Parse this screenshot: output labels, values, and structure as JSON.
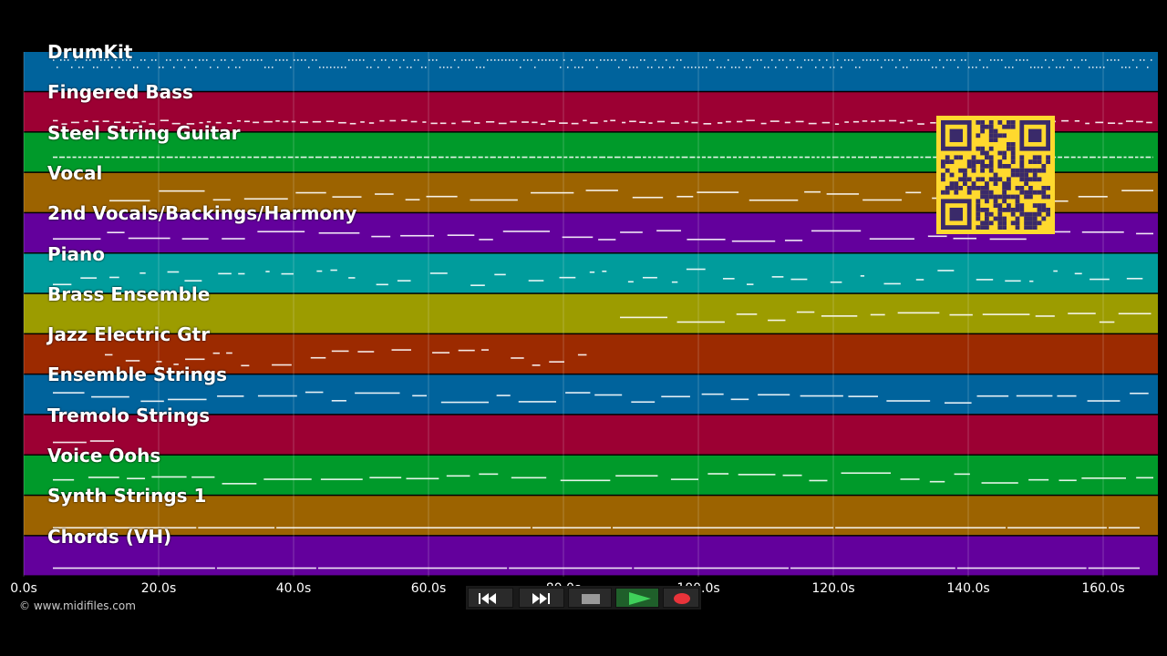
{
  "tracks": [
    {
      "name": "DrumKit",
      "color": "#00639c"
    },
    {
      "name": "Fingered Bass",
      "color": "#9c0033"
    },
    {
      "name": "Steel String Guitar",
      "color": "#009a2a"
    },
    {
      "name": "Vocal",
      "color": "#9c6300"
    },
    {
      "name": "2nd Vocals/Backings/Harmony",
      "color": "#63009c"
    },
    {
      "name": "Piano",
      "color": "#009c9c"
    },
    {
      "name": "Brass Ensemble",
      "color": "#9c9c00"
    },
    {
      "name": "Jazz Electric Gtr",
      "color": "#9c2a00"
    },
    {
      "name": "Ensemble Strings",
      "color": "#00639c"
    },
    {
      "name": "Tremolo Strings",
      "color": "#9c0033"
    },
    {
      "name": "Voice Oohs",
      "color": "#009a2a"
    },
    {
      "name": "Synth Strings 1",
      "color": "#9c6300"
    },
    {
      "name": "Chords (VH)",
      "color": "#63009c"
    }
  ],
  "timeline": {
    "ticks": [
      "0.0s",
      "20.0s",
      "40.0s",
      "60.0s",
      "80.0s",
      "100.0s",
      "120.0s",
      "140.0s",
      "160.0s"
    ]
  },
  "copyright": "© www.midifiles.com",
  "qr_code": {
    "color": "#ffd92e",
    "dark": "#3a2a6a"
  },
  "transport": {
    "rewind_icon": "rewind-icon",
    "fast_forward_icon": "fast-forward-icon",
    "stop_icon": "stop-icon",
    "play_icon": "play-icon",
    "record_icon": "record-icon"
  }
}
